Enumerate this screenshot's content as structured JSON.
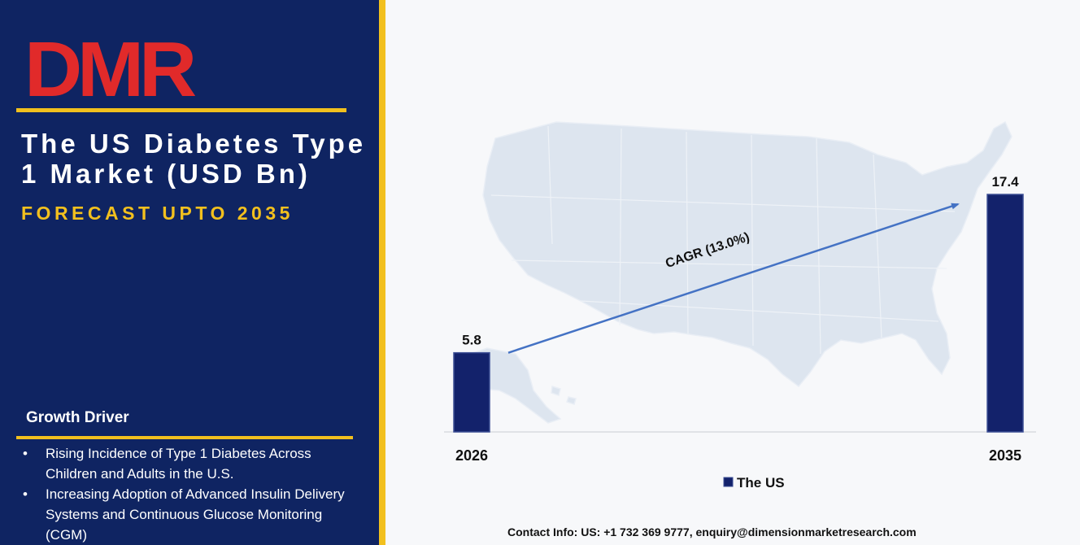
{
  "header": {
    "logo_text": "DMR",
    "title": "The US Diabetes Type 1 Market (USD Bn)",
    "subtitle": "FORECAST UPTO 2035"
  },
  "growth_driver": {
    "title": "Growth Driver",
    "items": [
      "Rising Incidence of Type 1 Diabetes Across Children and Adults in the U.S.",
      "Increasing Adoption of Advanced Insulin Delivery Systems and Continuous Glucose Monitoring (CGM)"
    ]
  },
  "chart_data": {
    "type": "bar",
    "categories": [
      "2026",
      "2035"
    ],
    "series": [
      {
        "name": "The US",
        "values": [
          5.8,
          17.4
        ]
      }
    ],
    "data_labels": [
      "5.8",
      "17.4"
    ],
    "annotation": "CAGR (13.0%)",
    "legend": "bottom",
    "grid": false,
    "ylim": [
      0,
      17.4
    ]
  },
  "colors": {
    "panel": "#0f2462",
    "accent_gold": "#f2c01e",
    "bar": "#13226b",
    "arrow": "#4472c4",
    "map": "#dde5ef",
    "logo_red": "#e12a2a",
    "logo_gray": "#bfc6c9"
  },
  "footer": {
    "contact": "Contact Info: US: +1 732 369 9777, enquiry@dimensionmarketresearch.com"
  }
}
